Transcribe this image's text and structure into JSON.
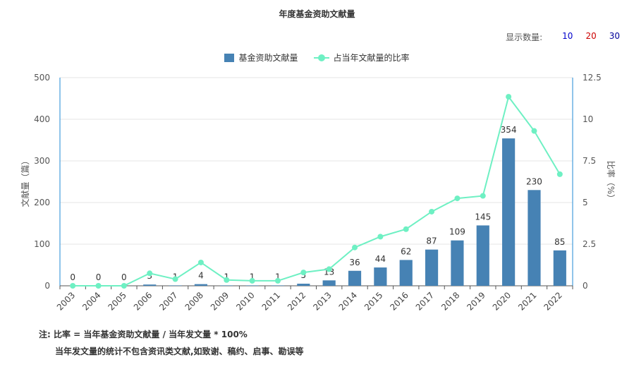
{
  "title": "年度基金资助文献量",
  "display_count": {
    "label": "显示数量:",
    "options": [
      {
        "label": "10",
        "color": "#0000cc"
      },
      {
        "label": "20",
        "color": "#cc0000"
      },
      {
        "label": "30",
        "color": "#000099"
      }
    ]
  },
  "legend": {
    "bar_label": "基金资助文献量",
    "line_label": "占当年文献量的比率"
  },
  "chart_data": {
    "type": "bar",
    "categories": [
      "2003",
      "2004",
      "2005",
      "2006",
      "2007",
      "2008",
      "2009",
      "2010",
      "2011",
      "2012",
      "2013",
      "2014",
      "2015",
      "2016",
      "2017",
      "2018",
      "2019",
      "2020",
      "2021",
      "2022"
    ],
    "series": [
      {
        "name": "基金资助文献量",
        "type": "bar",
        "axis": "left",
        "color": "#4682B4",
        "values": [
          0,
          0,
          0,
          3,
          1,
          4,
          1,
          1,
          1,
          5,
          13,
          36,
          44,
          62,
          87,
          109,
          145,
          354,
          230,
          85
        ]
      },
      {
        "name": "占当年文献量的比率",
        "type": "line",
        "axis": "right",
        "color": "#6EF0C3",
        "values": [
          0,
          0,
          0,
          0.75,
          0.4,
          1.4,
          0.35,
          0.3,
          0.3,
          0.8,
          1.0,
          2.3,
          2.95,
          3.4,
          4.45,
          5.25,
          5.4,
          11.35,
          9.3,
          6.7
        ]
      }
    ],
    "ylabel_left": "文献量（篇）",
    "ylabel_right": "比率（%）",
    "ylim_left": [
      0,
      500
    ],
    "ylim_right": [
      0,
      12.5
    ],
    "yticks_left": [
      "0",
      "100",
      "200",
      "300",
      "400",
      "500"
    ],
    "yticks_right": [
      "0",
      "2.5",
      "5",
      "7.5",
      "10",
      "12.5"
    ],
    "grid": true
  },
  "notes": {
    "line1": "注:   比率 = 当年基金资助文献量 / 当年发文量 * 100%",
    "line2": "当年发文量的统计不包含资讯类文献,如致谢、稿约、启事、勘误等"
  }
}
